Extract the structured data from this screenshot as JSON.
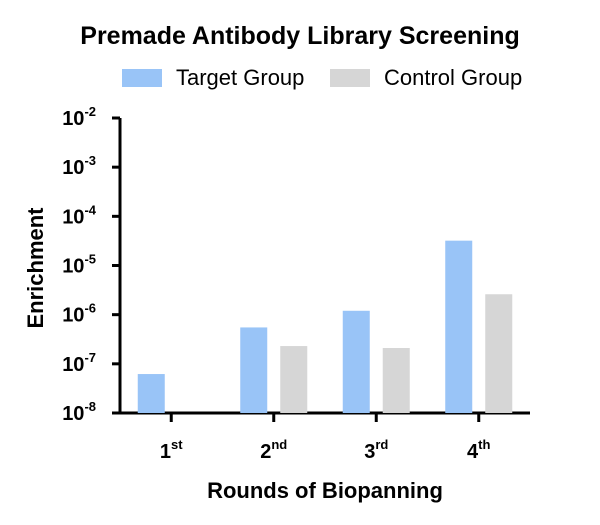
{
  "chart_data": {
    "type": "bar",
    "title": "Premade Antibody Library Screening",
    "xlabel": "Rounds of Biopanning",
    "ylabel": "Enrichment",
    "yscale": "log",
    "ylim": [
      1e-08,
      0.01
    ],
    "categories": [
      {
        "base": "1",
        "sup": "st"
      },
      {
        "base": "2",
        "sup": "nd"
      },
      {
        "base": "3",
        "sup": "rd"
      },
      {
        "base": "4",
        "sup": "th"
      }
    ],
    "yticks": [
      {
        "base": "10",
        "exp": "-2"
      },
      {
        "base": "10",
        "exp": "-3"
      },
      {
        "base": "10",
        "exp": "-4"
      },
      {
        "base": "10",
        "exp": "-5"
      },
      {
        "base": "10",
        "exp": "-6"
      },
      {
        "base": "10",
        "exp": "-7"
      },
      {
        "base": "10",
        "exp": "-8"
      }
    ],
    "series": [
      {
        "name": "Target Group",
        "color": "#99c4f7",
        "values": [
          6.2e-08,
          5.5e-07,
          1.2e-06,
          3.2e-05
        ]
      },
      {
        "name": "Control Group",
        "color": "#d6d6d6",
        "values": [
          null,
          2.3e-07,
          2.1e-07,
          2.6e-06
        ]
      }
    ],
    "legend": "top",
    "grid": false
  }
}
